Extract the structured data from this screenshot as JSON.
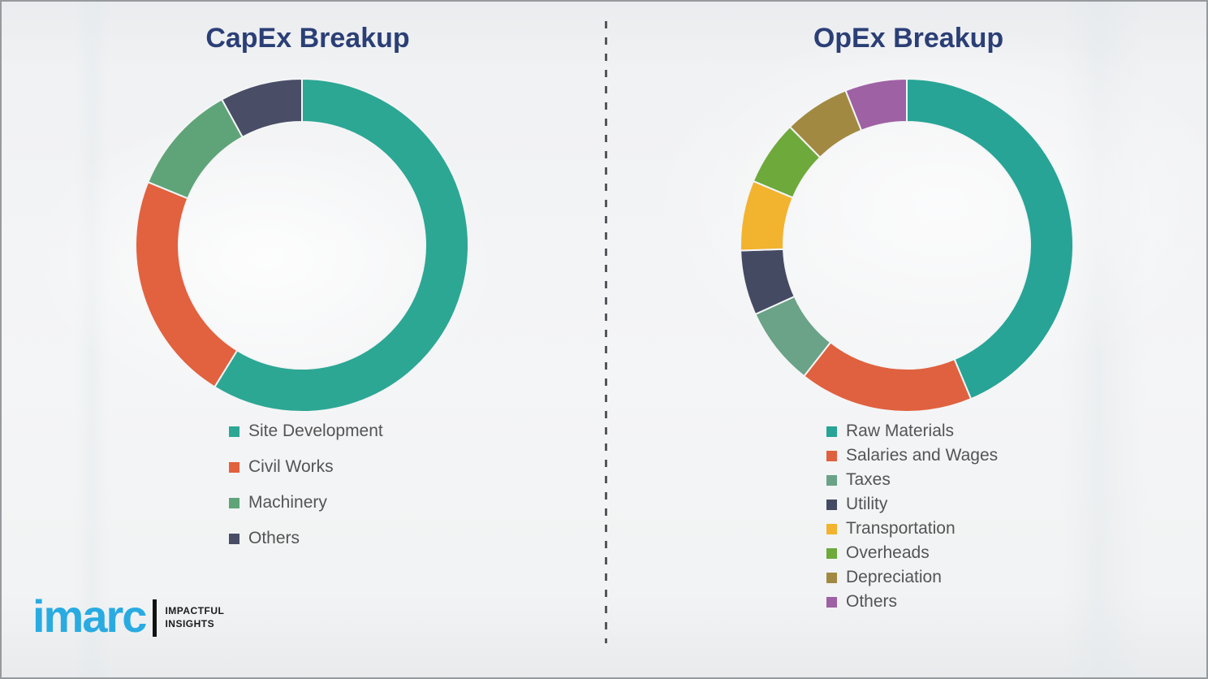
{
  "theme": {
    "background_color": "#F1F2F4",
    "title_color": "#2B3F76",
    "legend_text_color": "#545454",
    "divider_color": "#54585C",
    "border_color": "#979A9D",
    "segment_separator_color": "#F4F5F6"
  },
  "chart_data": [
    {
      "type": "pie",
      "subtype": "donut",
      "title": "CapEx Breakup",
      "labels": [
        "Site Development",
        "Civil Works",
        "Machinery",
        "Others"
      ],
      "values": [
        58.8,
        22.4,
        10.8,
        8.0
      ],
      "unit": "percent_estimated_from_arc_angles",
      "colors": [
        "#2CA794",
        "#E2613E",
        "#5FA478",
        "#494E66"
      ],
      "start_angle_deg": 0,
      "direction": "clockwise",
      "inner_radius_ratio": 0.74,
      "legend_position": "below-left",
      "data_labels_shown": false
    },
    {
      "type": "pie",
      "subtype": "donut",
      "title": "OpEx Breakup",
      "labels": [
        "Raw Materials",
        "Salaries and Wages",
        "Taxes",
        "Utility",
        "Transportation",
        "Overheads",
        "Depreciation",
        "Others"
      ],
      "values": [
        43.7,
        16.9,
        7.6,
        6.3,
        6.8,
        6.3,
        6.4,
        6.0
      ],
      "unit": "percent_estimated_from_arc_angles",
      "colors": [
        "#27A496",
        "#E0613F",
        "#6AA387",
        "#454A63",
        "#F2B32E",
        "#6EA93B",
        "#A28942",
        "#9E61A4"
      ],
      "start_angle_deg": 0,
      "direction": "clockwise",
      "inner_radius_ratio": 0.74,
      "legend_position": "below-left",
      "data_labels_shown": false
    }
  ],
  "logo": {
    "brand": "imarc",
    "brand_color": "#29ABE2",
    "tagline": [
      "IMPACTFUL",
      "INSIGHTS"
    ],
    "tagline_color": "#1B1B1B"
  }
}
